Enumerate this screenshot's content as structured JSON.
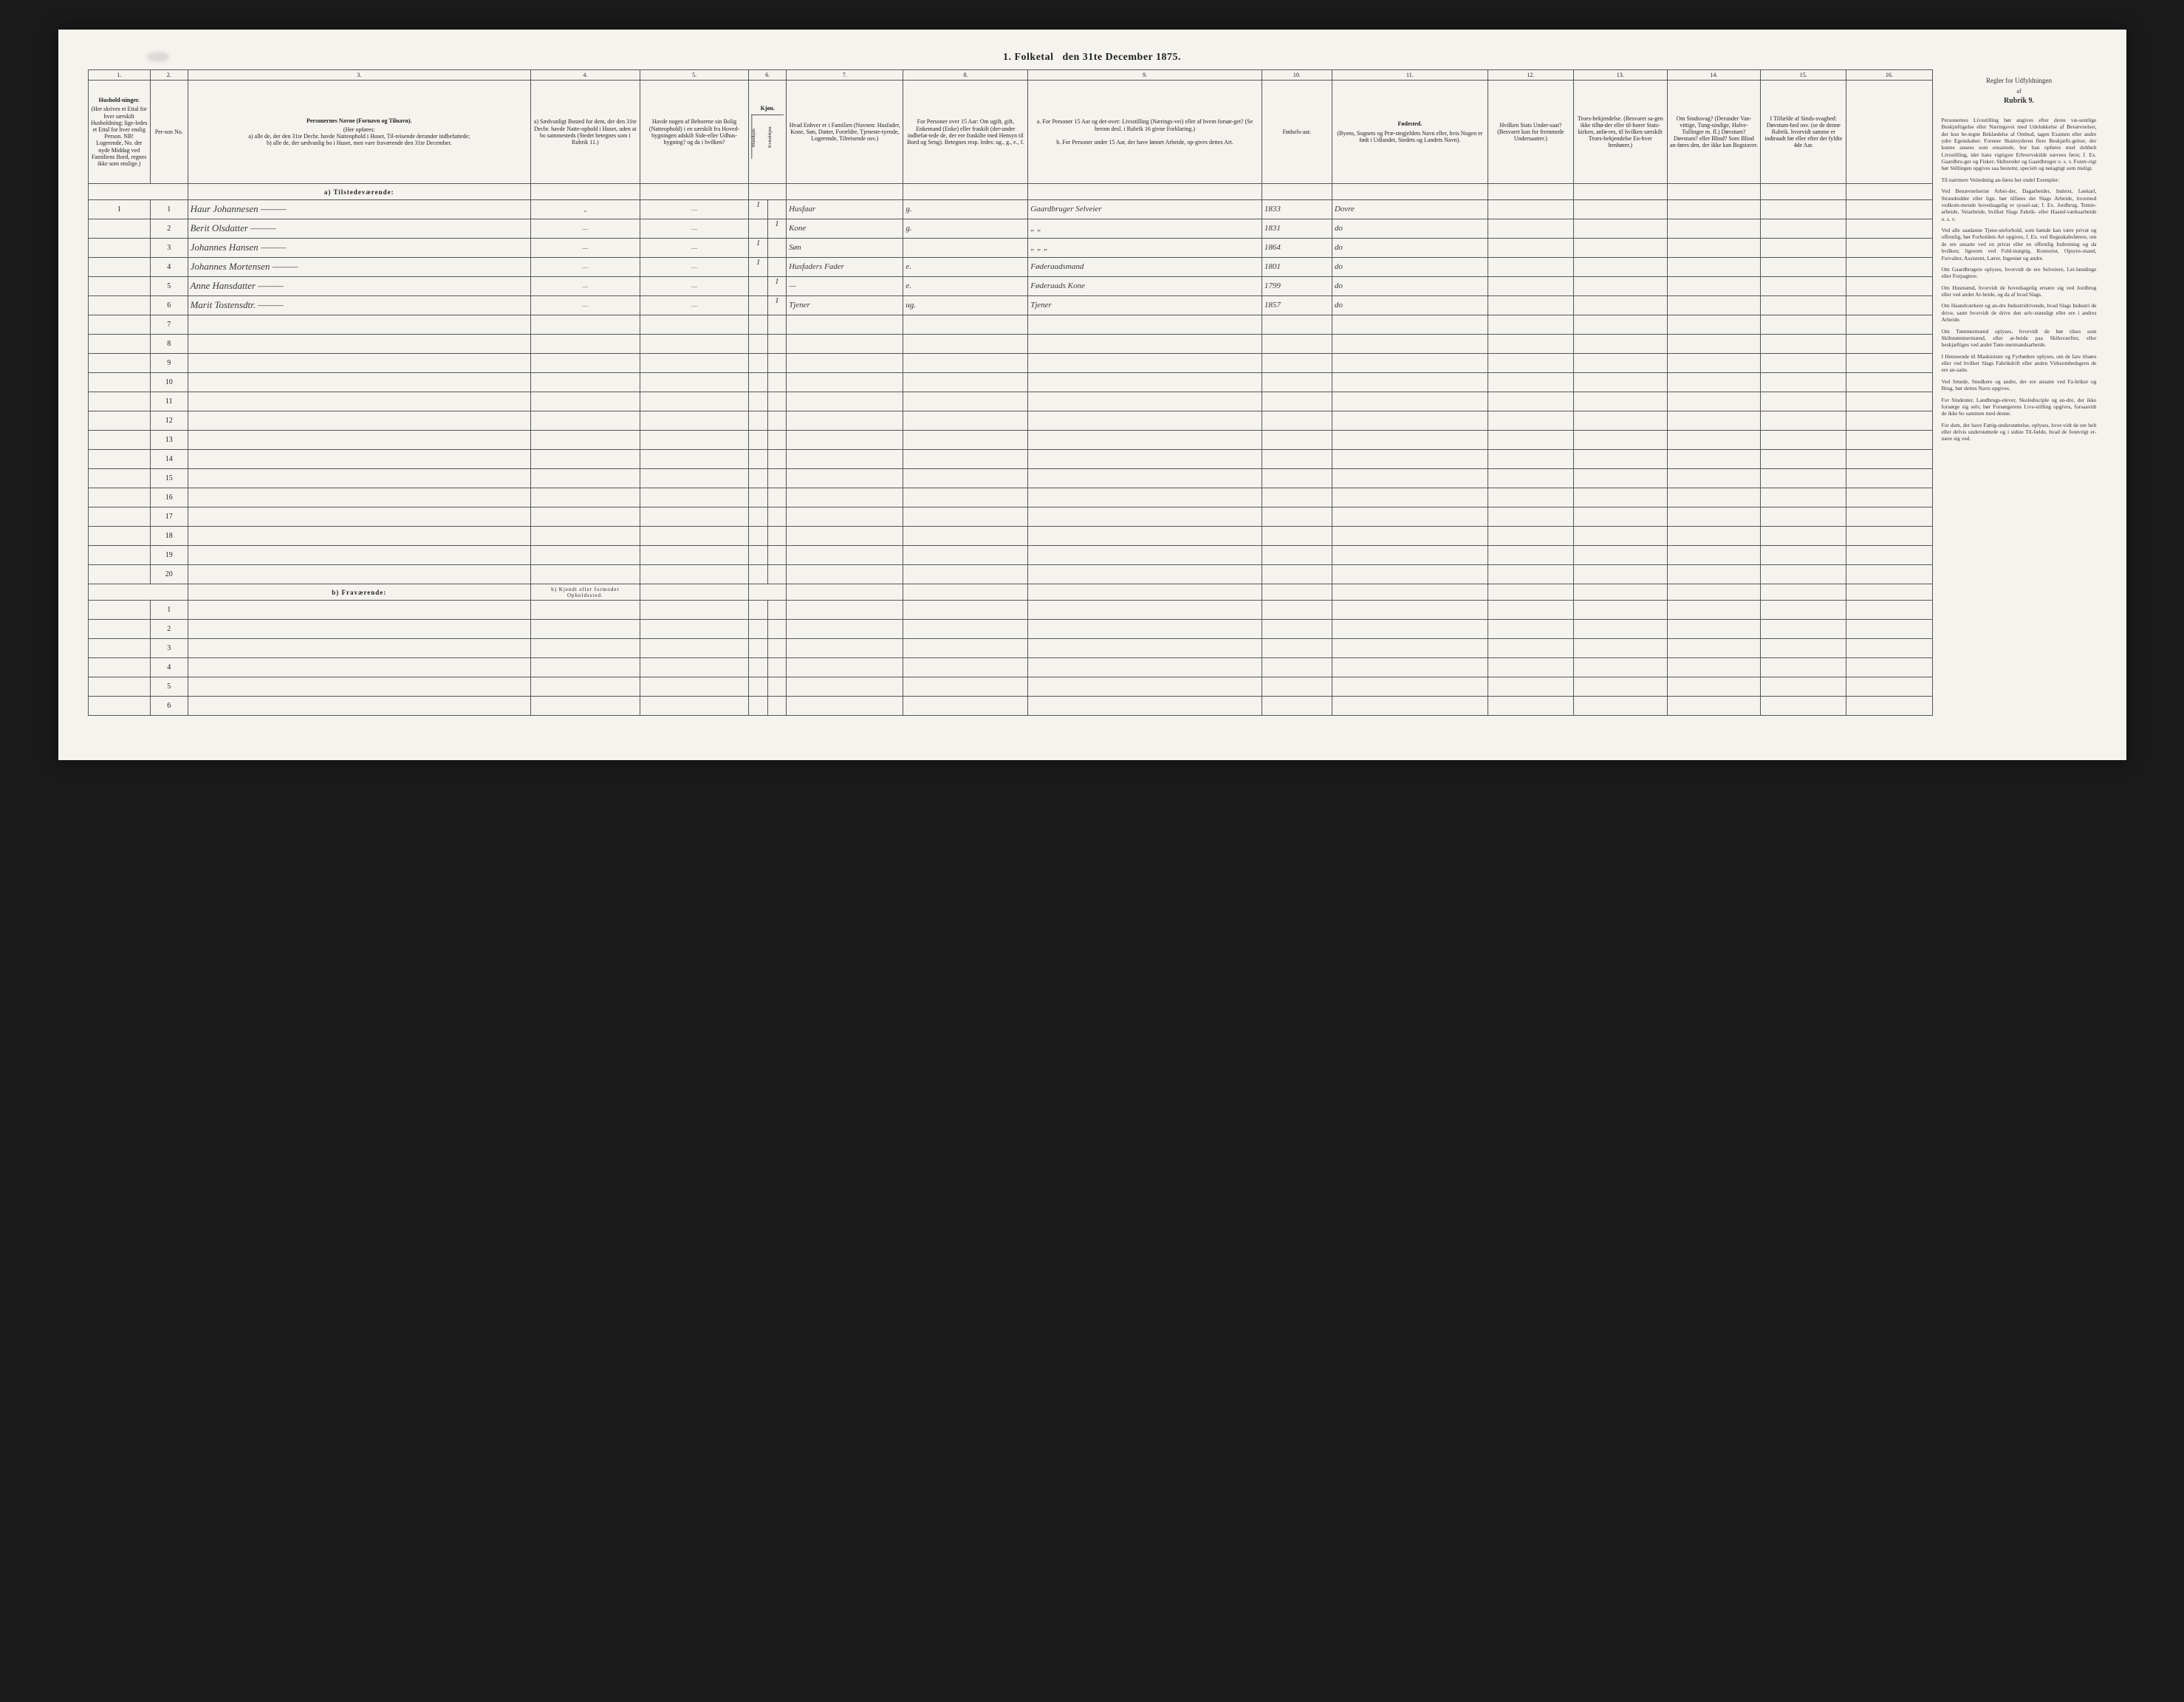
{
  "title": {
    "part1": "1.  Folketal",
    "part2": "den 31te December 1875."
  },
  "columns": {
    "nums": [
      "1.",
      "2.",
      "3.",
      "4.",
      "5.",
      "6.",
      "7.",
      "8.",
      "9.",
      "10.",
      "11.",
      "12.",
      "13.",
      "14.",
      "15.",
      "16."
    ],
    "widths": [
      40,
      24,
      220,
      70,
      70,
      24,
      75,
      80,
      150,
      45,
      100,
      55,
      60,
      60,
      55,
      55
    ],
    "h1": {
      "main": "Hushold-ninger.",
      "sub": "(Her skrives et Ettal for hver særskilt Husholdning; lige-ledes et Ettal for hver enslig Person. NB! Logerende, No. der nyde Middag ved Familiens Bord, regnes ikke som enslige.)"
    },
    "h2": "Per-son No.",
    "h3": {
      "main": "Personernes Navne (Fornavn og Tilnavn).",
      "sub": "(Her opføres:\na) alle de, der den 31te Decbr. havde Natteophold i Huset, Til-reisende derunder indbefattede;\nb) alle de, der sædvanlig bo i Huset, men vare fraværende den 31te December."
    },
    "h4": "a) Sædvanligt Bosted for dem, der den 31te Decbr. havde Natte-ophold i Huset, uden at bo sammesteds (Stedet betegnes som i Rubrik 11.)",
    "h5": "Havde nogen af Beboerne sin Bolig (Natteophold) i en særskilt fra Hoved-bygningen adskilt Side-eller Udhus-bygning? og da i hvilken?",
    "h6": {
      "main": "Kjøn.",
      "sub1": "Mandkjøn.",
      "sub2": "Kvindekjøn."
    },
    "h7": "Hvad Enhver er i Familien (Navnen: Husfader, Kone, Søn, Datter, Forældre, Tjeneste-tyende, Logerende, Tilreisende osv.)",
    "h8": "For Personer over 15 Aar: Om ugift, gift, Enkemand (Enke) eller fraskilt (der-under indbefat-tede de, der ere fraskilte med Hensyn til Bord og Seng). Betegnes resp. ledes: ug., g., e., f.",
    "h9": {
      "a": "a. For Personer 15 Aar og der-over: Livsstilling (Nærings-vei) eller af hvem forsør-get? (Se herom desl. i Rubrik 16 givne Forklaring.)",
      "b": "b. For Personer under 15 Aar, der have lønnet Arbeide, op-gives dettes Art."
    },
    "h10": "Fødsels-aar.",
    "h11": {
      "main": "Fødested.",
      "sub": "(Byens, Sognets og Præ-stegjeldets Navn eller, hvis Nogen er født i Udlandet, Stedets og Landets Navn)."
    },
    "h12": "Hvilken Stats Under-saat? (Besvaret kun for fremmede Undersaatter.)",
    "h13": "Troes-bekjendelse. (Besvaret sa-gen ikke tilhø-der eller til-horer Stats-kirken, anfø-res, til hvilken særskilt Troes-bekjendelse En-hver henhører.)",
    "h14": "Om Sindssvag? (Derunder Van-vittige, Tung-sindige, Halve-Tullinger m. fl.) Døvstum? Døvstum? eller Blind? Som Blind an-føres den, der ikke kan Bogstaver.",
    "h15": "I Tilfælde af Sinds-svaghed: Døvstum-hed osv. (se de denne Rubrik. hvorvidt samme er indtraadt før eller efter det fyldte 4de Aar.",
    "h16": ""
  },
  "section_a": "a)  Tilstedeværende:",
  "section_b": "b)  Fraværende:",
  "section_b_note": "b) Kjendt eller formodet Opholdssted.",
  "rows_a": [
    {
      "hh": "1",
      "no": "1",
      "name": "Haur Johannesen",
      "c4": "„",
      "c5": "—",
      "m": "1",
      "q": "",
      "fam": "Husfaar",
      "civ": "g.",
      "liv": "Gaardbruger Selveier",
      "yr": "1833",
      "fst": "Dovre",
      "c12": "",
      "c13": "",
      "c14": "",
      "c15": ""
    },
    {
      "hh": "",
      "no": "2",
      "name": "Berit Olsdatter",
      "c4": "—",
      "c5": "—",
      "m": "",
      "q": "1",
      "fam": "Kone",
      "civ": "g.",
      "liv": "„ „",
      "yr": "1831",
      "fst": "do",
      "c12": "",
      "c13": "",
      "c14": "",
      "c15": ""
    },
    {
      "hh": "",
      "no": "3",
      "name": "Johannes Hansen",
      "c4": "—",
      "c5": "—",
      "m": "1",
      "q": "",
      "fam": "Søn",
      "civ": "",
      "liv": "„ „ „",
      "yr": "1864",
      "fst": "do",
      "c12": "",
      "c13": "",
      "c14": "",
      "c15": ""
    },
    {
      "hh": "",
      "no": "4",
      "name": "Johannes Mortensen",
      "c4": "—",
      "c5": "—",
      "m": "1",
      "q": "",
      "fam": "Husfaders Fader",
      "civ": "e.",
      "liv": "Føderaadsmand",
      "yr": "1801",
      "fst": "do",
      "c12": "",
      "c13": "",
      "c14": "",
      "c15": ""
    },
    {
      "hh": "",
      "no": "5",
      "name": "Anne Hansdatter",
      "c4": "—",
      "c5": "—",
      "m": "",
      "q": "1",
      "fam": "—",
      "civ": "e.",
      "liv": "Føderaads Kone",
      "yr": "1799",
      "fst": "do",
      "c12": "",
      "c13": "",
      "c14": "",
      "c15": ""
    },
    {
      "hh": "",
      "no": "6",
      "name": "Marit Tostensdtr.",
      "c4": "—",
      "c5": "—",
      "m": "",
      "q": "1",
      "fam": "Tjener",
      "civ": "ug.",
      "liv": "Tjener",
      "yr": "1857",
      "fst": "do",
      "c12": "",
      "c13": "",
      "c14": "",
      "c15": ""
    }
  ],
  "blank_a_count": 14,
  "blank_b_count": 6,
  "sidebar": {
    "title": "Regler for Udfyldningen",
    "sub": "af",
    "rubrik": "Rubrik 9.",
    "paras": [
      "Personernes Livsstilling bør angives efter deres væ-sentlige Beskjæftigelse eller Næringsvei med Udelukkelse af Benævnelser, der kun be-tegne Beklædelse af Ombud, tagen Examen eller andre ydre Egenskaber. Forener Skatteyderen flere Beskjæfti-gelser, der kunne ansees som ensartede, bor han opføres med dobbelt Livsstilling, idet hans vigtigste Erhvervskilde nævnes først; f. Ex. Gaardbru-ger og Fisker; Skibsreder og Gaardbruger o. s. v. Forøv-rigt bør Stillingen opgives saa bestemt, specielt og nøiagtigt som muligt.",
      "Til nærmere Veiledning an-føres her endel Exempler:",
      "Ved Benævnelserne Arbei-der, Dagarbeider, Inderst, Løskarl, Strandsidder eller lign. bør tilføies det Slags Arbeide, hvormed vedkom-mende hovedsagelig er syssel-sat; f. Ex. Jordbrug, Tomte-arbeide, Veiarbeide, hvilket Slags Fabrik- eller Haand-værksarbeide o. s. v.",
      "Ved alle saadanne Tjene-steforhold, som hænde kan være privat og offentlig, bør Forholdets Art opgives, f. Ex. ved Regnskabsførere, om de ere ansatte ved en privat eller en offentlig Indretning og da hvilken; ligesom ved Fuld-mægtig, Kontorist, Opsyns-mand, Forvalter, Assistent, Lærer, Ingeniør og andre.",
      "Om Gaardbrugere oplyses, hvorvidt de ere Selveiere, Lei-lændinge eller Forpagtere.",
      "Om Husmænd, hvorvidt de hovedsagelig ernære sig ved Jordbrug eller ved andet Ar-beide, og da af hvad Slags.",
      "Om Haandværkere og an-dre Industridrivende, hvad Slags Industri de drive, samt hvorvidt de drive den selv-stændigt eller ere i andres Arbeide.",
      "Om Tømmermænd oplyses, hvorvidt de bør tilses som Skibstømmermænd, eller ar-beide paa Skibsværfter, eller beskjæftiges ved andet Tøm-mermandsarbeide.",
      "I Henseende til Maskinister og Fyrbødere oplyses, om de fare tilsøes eller ved hvilket Slags Fabrikdrift eller anden Virksomhedsgren de ere an-satte.",
      "Ved Smede, Snedkere og andre, der ere ansatte ved Fa-briker og Brug, bør dettes Navn opgives.",
      "For Studenter, Landbrugs-elever, Skoledisciple og an-dre, der ikke forsørge sig selv, bør Forsørgerens Livs-stilling opgives, forsaavidt de ikke bo sammen med denne.",
      "For dem, der have Fattig-understøttelse, oplyses, hvor-vidt de ere helt eller delvis understøttede og i sidste Til-fælde, hvad de forøvrigt er-nære sig ved."
    ]
  },
  "colors": {
    "page_bg": "#f5f3ee",
    "outer_bg": "#1a1a1a",
    "ink": "#222222",
    "border": "#555555",
    "handwriting": "#3a3a3a"
  }
}
